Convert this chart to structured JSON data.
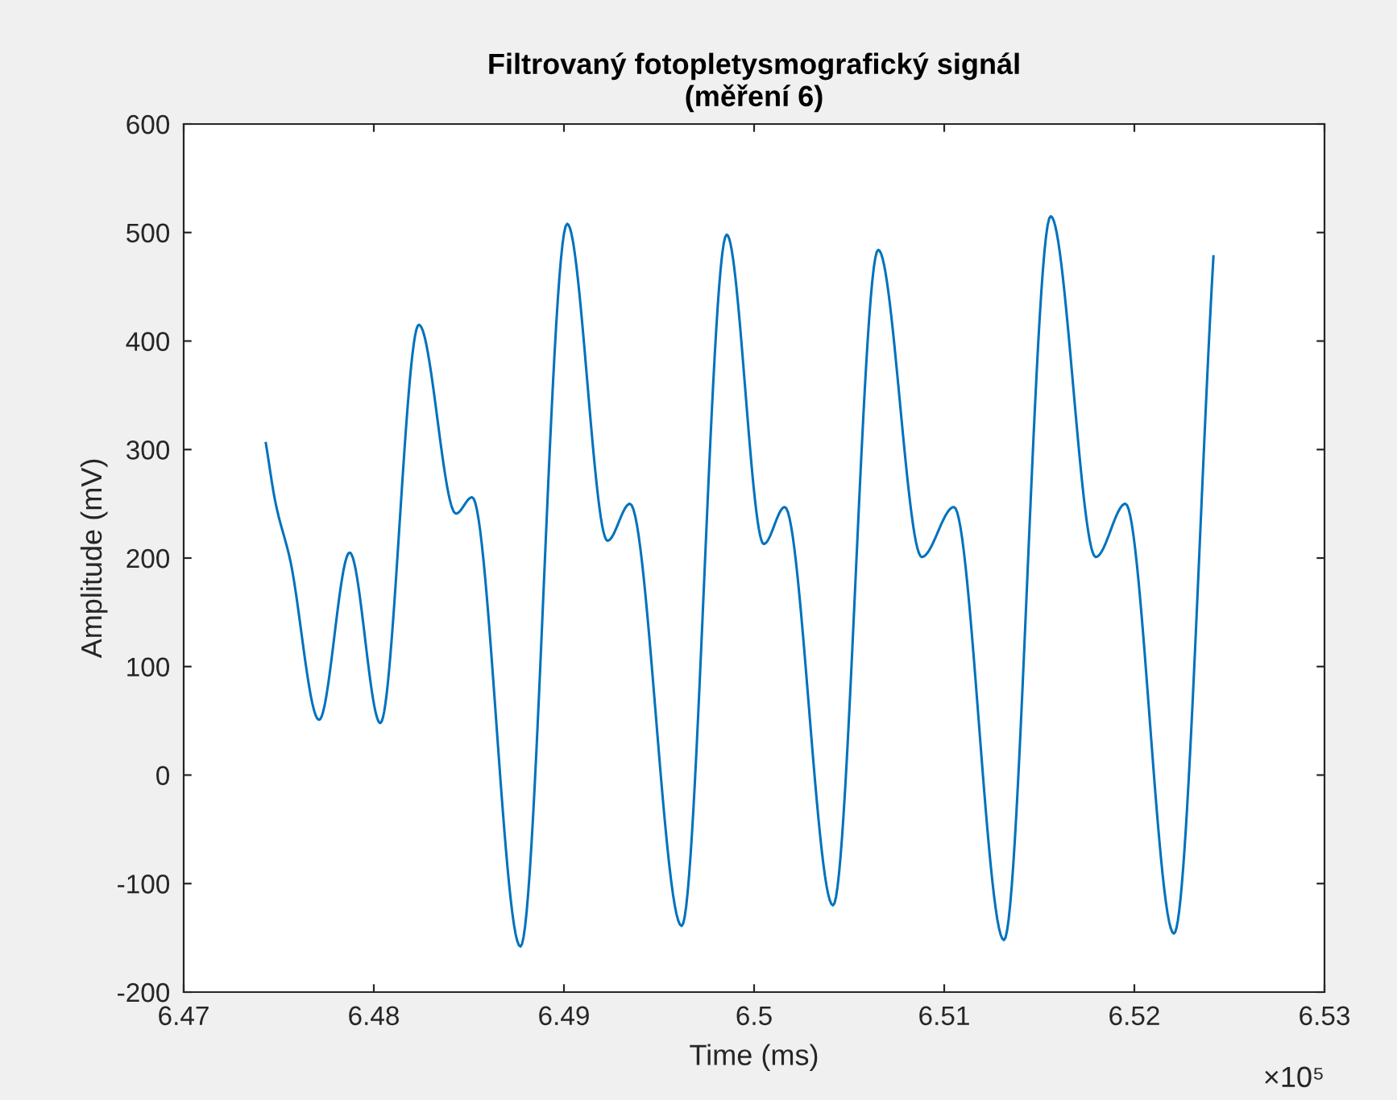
{
  "chart_data": {
    "type": "line",
    "title": "Filtrovaný fotopletysmografický signál\n(měření 6)",
    "xlabel": "Time (ms)",
    "ylabel": "Amplitude (mV)",
    "annotations": [
      "×10⁵"
    ],
    "series": [
      {
        "color": "#0072bd",
        "x": [
          6.47432,
          6.47483,
          6.47559,
          6.47712,
          6.47873,
          6.48034,
          6.48237,
          6.48432,
          6.48517,
          6.48771,
          6.49017,
          6.49229,
          6.49347,
          6.49619,
          6.49856,
          6.50051,
          6.50161,
          6.50415,
          6.50653,
          6.50882,
          6.51051,
          6.51314,
          6.5156,
          6.51797,
          6.51953,
          6.52208,
          6.52416
        ],
        "values": [
          306,
          251,
          199,
          51,
          205,
          48,
          415,
          241,
          256,
          -158,
          508,
          216,
          250,
          -139,
          498,
          213,
          247,
          -120,
          484,
          201,
          247,
          -152,
          515,
          201,
          250,
          -146,
          478
        ]
      }
    ],
    "xlim": [
      6.47,
      6.53
    ],
    "ylim": [
      -200,
      600
    ],
    "xticks": [
      6.47,
      6.48,
      6.49,
      6.5,
      6.51,
      6.52,
      6.53
    ],
    "yticks": [
      -200,
      -100,
      0,
      100,
      200,
      300,
      400,
      500,
      600
    ],
    "grid": false,
    "legend": false,
    "line_style": "solid",
    "marker": "none"
  }
}
